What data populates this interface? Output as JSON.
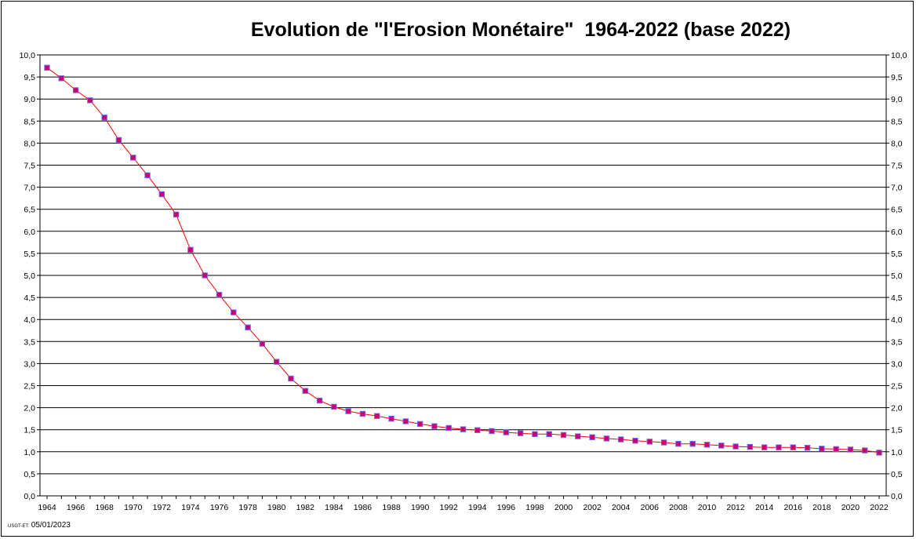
{
  "chart_data": {
    "type": "line",
    "title": "Evolution de \"l'Erosion Monétaire\"  1964-2022 (base 2022)",
    "xlabel": "",
    "ylabel": "",
    "ylim": [
      0,
      10
    ],
    "y_ticks": [
      "0,0",
      "0,5",
      "1,0",
      "1,5",
      "2,0",
      "2,5",
      "3,0",
      "3,5",
      "4,0",
      "4,5",
      "5,0",
      "5,5",
      "6,0",
      "6,5",
      "7,0",
      "7,5",
      "8,0",
      "8,5",
      "9,0",
      "9,5",
      "10,0"
    ],
    "x_tick_labels": [
      "1964",
      "1966",
      "1968",
      "1970",
      "1972",
      "1974",
      "1976",
      "1978",
      "1980",
      "1982",
      "1984",
      "1986",
      "1988",
      "1990",
      "1992",
      "1994",
      "1996",
      "1998",
      "2000",
      "2002",
      "2004",
      "2006",
      "2008",
      "2010",
      "2012",
      "2014",
      "2016",
      "2018",
      "2020",
      "2022"
    ],
    "grid": true,
    "legend": "none",
    "line_color": "#ff0000",
    "marker_color": "#cc0066",
    "x": [
      1964,
      1965,
      1966,
      1967,
      1968,
      1969,
      1970,
      1971,
      1972,
      1973,
      1974,
      1975,
      1976,
      1977,
      1978,
      1979,
      1980,
      1981,
      1982,
      1983,
      1984,
      1985,
      1986,
      1987,
      1988,
      1989,
      1990,
      1991,
      1992,
      1993,
      1994,
      1995,
      1996,
      1997,
      1998,
      1999,
      2000,
      2001,
      2002,
      2003,
      2004,
      2005,
      2006,
      2007,
      2008,
      2009,
      2010,
      2011,
      2012,
      2013,
      2014,
      2015,
      2016,
      2017,
      2018,
      2019,
      2020,
      2021,
      2022
    ],
    "values": [
      9.71,
      9.47,
      9.2,
      8.97,
      8.58,
      8.07,
      7.67,
      7.27,
      6.84,
      6.38,
      5.58,
      5.0,
      4.56,
      4.16,
      3.82,
      3.45,
      3.04,
      2.66,
      2.38,
      2.16,
      2.02,
      1.92,
      1.86,
      1.81,
      1.75,
      1.69,
      1.63,
      1.58,
      1.54,
      1.51,
      1.49,
      1.47,
      1.44,
      1.42,
      1.4,
      1.4,
      1.38,
      1.35,
      1.33,
      1.3,
      1.28,
      1.25,
      1.23,
      1.21,
      1.18,
      1.18,
      1.16,
      1.14,
      1.12,
      1.11,
      1.1,
      1.1,
      1.1,
      1.09,
      1.07,
      1.06,
      1.05,
      1.03,
      0.98
    ]
  },
  "footer": {
    "prefix": "USGT-ET:",
    "date": "05/01/2023"
  }
}
